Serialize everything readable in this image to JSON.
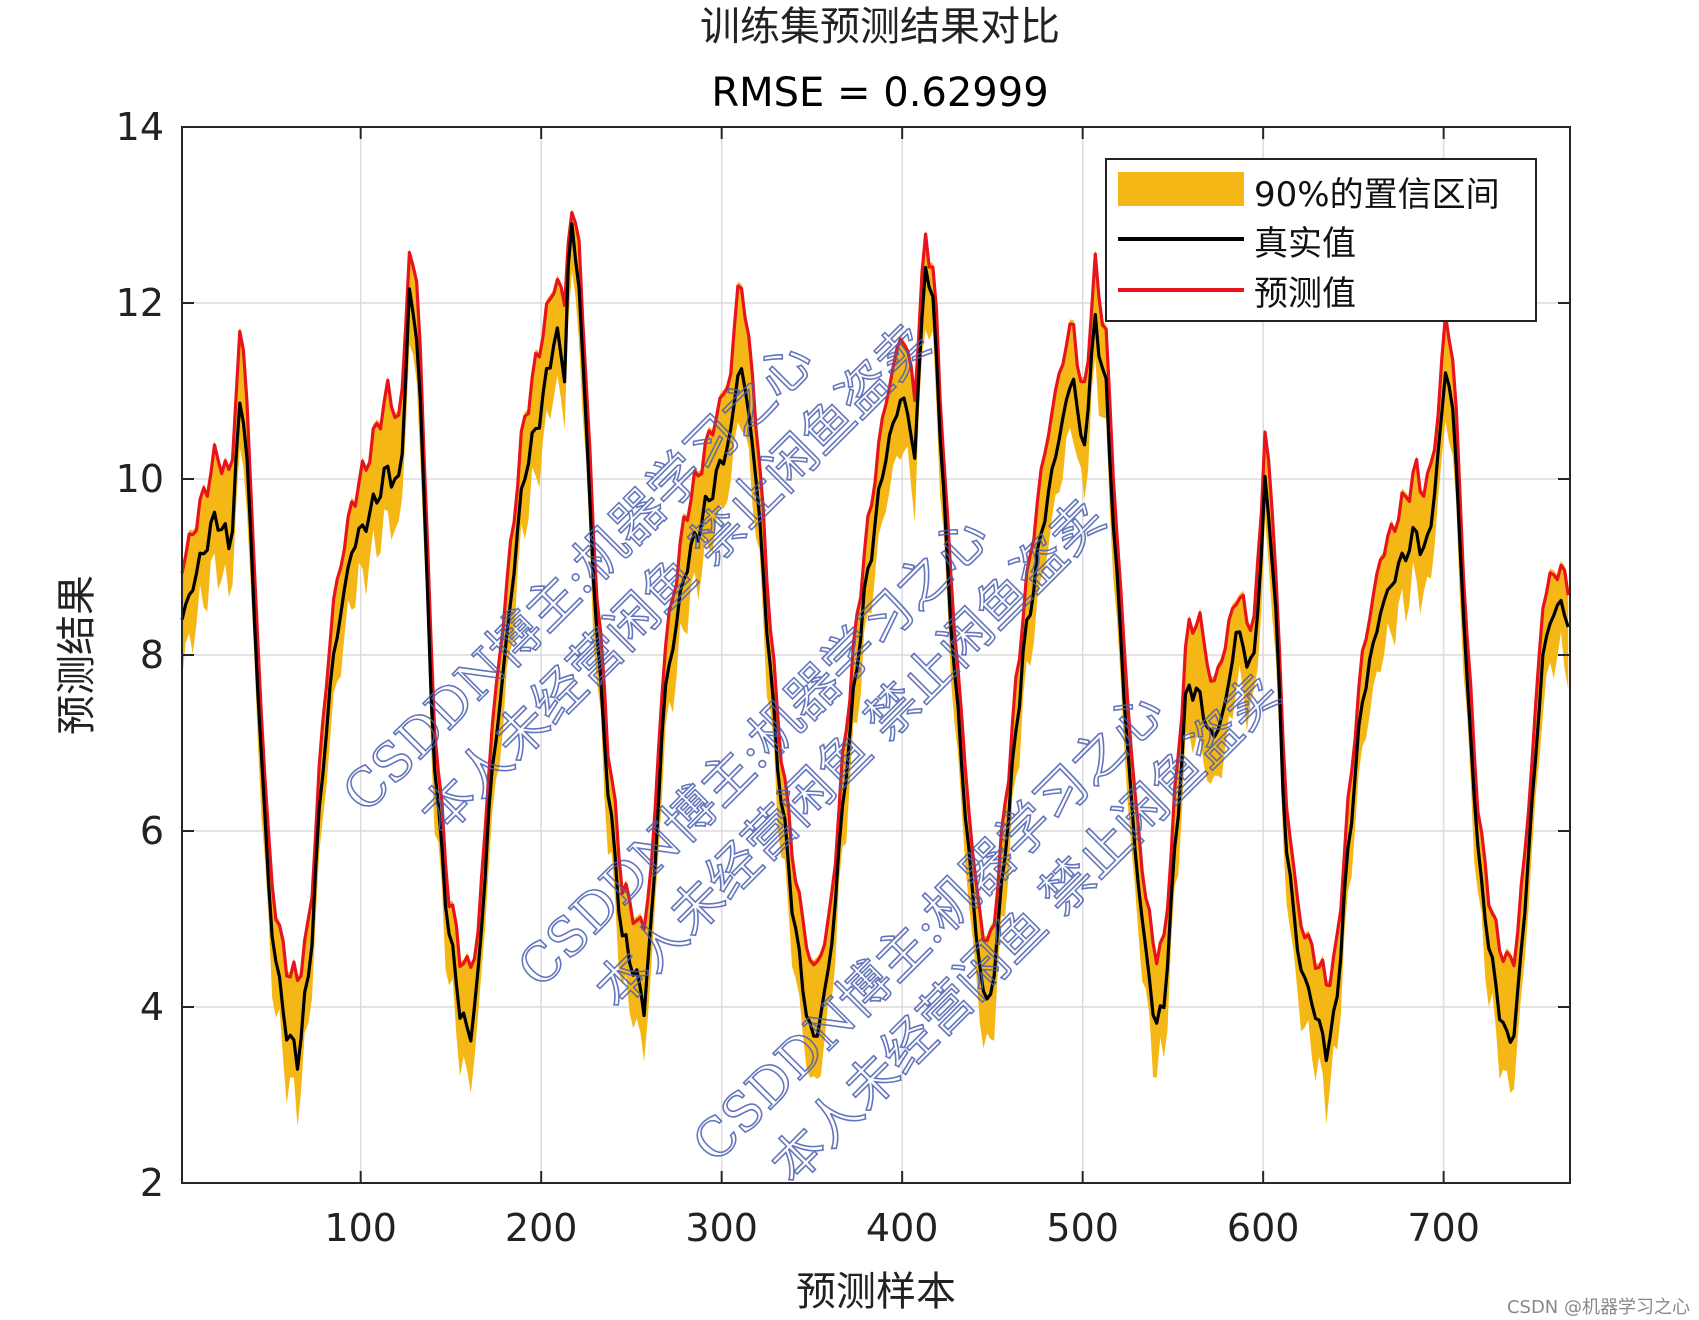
{
  "chart_data": {
    "type": "line",
    "title": "训练集预测结果对比",
    "subtitle": "RMSE = 0.62999",
    "xlabel": "预测样本",
    "ylabel": "预测结果",
    "xlim": [
      1,
      770
    ],
    "ylim": [
      2,
      14
    ],
    "xticks": [
      100,
      200,
      300,
      400,
      500,
      600,
      700
    ],
    "yticks": [
      2,
      4,
      6,
      8,
      10,
      12,
      14
    ],
    "grid": true,
    "legend_position": "top-right",
    "legend": [
      "90%的置信区间",
      "真实值",
      "预测值"
    ],
    "series": [
      {
        "name": "真实值",
        "color": "#000000",
        "points": [
          [
            1,
            8.4
          ],
          [
            10,
            9.0
          ],
          [
            20,
            9.6
          ],
          [
            28,
            9.2
          ],
          [
            33,
            10.8
          ],
          [
            36,
            10.7
          ],
          [
            42,
            8.0
          ],
          [
            50,
            5.0
          ],
          [
            58,
            3.8
          ],
          [
            65,
            3.4
          ],
          [
            72,
            4.5
          ],
          [
            78,
            6.5
          ],
          [
            85,
            8.0
          ],
          [
            95,
            9.2
          ],
          [
            105,
            9.6
          ],
          [
            115,
            10.1
          ],
          [
            122,
            9.9
          ],
          [
            127,
            12.1
          ],
          [
            132,
            11.5
          ],
          [
            140,
            7.0
          ],
          [
            148,
            5.0
          ],
          [
            155,
            4.0
          ],
          [
            160,
            3.6
          ],
          [
            165,
            4.3
          ],
          [
            172,
            6.5
          ],
          [
            180,
            8.0
          ],
          [
            190,
            10.0
          ],
          [
            200,
            10.8
          ],
          [
            208,
            11.7
          ],
          [
            213,
            11.2
          ],
          [
            216,
            13.0
          ],
          [
            221,
            12.2
          ],
          [
            230,
            8.5
          ],
          [
            237,
            6.5
          ],
          [
            245,
            4.8
          ],
          [
            252,
            4.4
          ],
          [
            257,
            4.0
          ],
          [
            262,
            5.2
          ],
          [
            268,
            7.5
          ],
          [
            280,
            9.0
          ],
          [
            295,
            9.9
          ],
          [
            305,
            10.5
          ],
          [
            310,
            11.4
          ],
          [
            318,
            10.3
          ],
          [
            330,
            7.0
          ],
          [
            340,
            5.0
          ],
          [
            348,
            3.8
          ],
          [
            352,
            3.6
          ],
          [
            360,
            4.5
          ],
          [
            368,
            6.5
          ],
          [
            378,
            8.5
          ],
          [
            390,
            10.2
          ],
          [
            400,
            11.0
          ],
          [
            407,
            10.3
          ],
          [
            413,
            12.5
          ],
          [
            418,
            11.8
          ],
          [
            425,
            9.0
          ],
          [
            432,
            7.0
          ],
          [
            440,
            5.0
          ],
          [
            446,
            4.0
          ],
          [
            450,
            4.2
          ],
          [
            458,
            6.0
          ],
          [
            467,
            8.0
          ],
          [
            478,
            9.5
          ],
          [
            488,
            10.6
          ],
          [
            495,
            11.2
          ],
          [
            500,
            10.2
          ],
          [
            507,
            11.8
          ],
          [
            513,
            11.0
          ],
          [
            520,
            8.5
          ],
          [
            528,
            6.0
          ],
          [
            534,
            4.8
          ],
          [
            540,
            3.8
          ],
          [
            545,
            4.0
          ],
          [
            552,
            6.0
          ],
          [
            558,
            7.7
          ],
          [
            565,
            7.5
          ],
          [
            572,
            7.0
          ],
          [
            580,
            7.5
          ],
          [
            585,
            8.3
          ],
          [
            590,
            8.0
          ],
          [
            595,
            7.9
          ],
          [
            601,
            9.9
          ],
          [
            606,
            9.0
          ],
          [
            612,
            6.0
          ],
          [
            620,
            4.5
          ],
          [
            628,
            4.0
          ],
          [
            635,
            3.5
          ],
          [
            640,
            3.9
          ],
          [
            648,
            6.0
          ],
          [
            655,
            7.5
          ],
          [
            665,
            8.5
          ],
          [
            675,
            9.0
          ],
          [
            685,
            9.4
          ],
          [
            690,
            9.1
          ],
          [
            697,
            10.2
          ],
          [
            701,
            11.3
          ],
          [
            706,
            10.6
          ],
          [
            712,
            8.0
          ],
          [
            720,
            5.5
          ],
          [
            728,
            4.3
          ],
          [
            735,
            3.6
          ],
          [
            740,
            3.8
          ],
          [
            748,
            6.0
          ],
          [
            755,
            8.0
          ],
          [
            762,
            8.6
          ],
          [
            770,
            8.4
          ]
        ]
      },
      {
        "name": "预测值",
        "color": "#e8141b",
        "points": [
          [
            1,
            9.0
          ],
          [
            10,
            9.6
          ],
          [
            20,
            10.3
          ],
          [
            28,
            10.0
          ],
          [
            33,
            11.6
          ],
          [
            36,
            11.4
          ],
          [
            42,
            8.5
          ],
          [
            50,
            5.5
          ],
          [
            58,
            4.5
          ],
          [
            65,
            4.3
          ],
          [
            72,
            5.0
          ],
          [
            78,
            7.0
          ],
          [
            85,
            8.6
          ],
          [
            95,
            9.7
          ],
          [
            105,
            10.3
          ],
          [
            115,
            11.0
          ],
          [
            122,
            10.6
          ],
          [
            127,
            12.6
          ],
          [
            132,
            12.1
          ],
          [
            140,
            7.5
          ],
          [
            148,
            5.4
          ],
          [
            155,
            4.6
          ],
          [
            160,
            4.4
          ],
          [
            165,
            4.8
          ],
          [
            172,
            7.0
          ],
          [
            180,
            8.6
          ],
          [
            190,
            10.6
          ],
          [
            200,
            11.6
          ],
          [
            208,
            12.3
          ],
          [
            213,
            12.0
          ],
          [
            216,
            13.1
          ],
          [
            221,
            12.7
          ],
          [
            230,
            9.0
          ],
          [
            237,
            7.0
          ],
          [
            245,
            5.4
          ],
          [
            252,
            5.0
          ],
          [
            257,
            4.9
          ],
          [
            262,
            5.8
          ],
          [
            268,
            8.0
          ],
          [
            280,
            9.6
          ],
          [
            295,
            10.6
          ],
          [
            305,
            11.2
          ],
          [
            310,
            12.4
          ],
          [
            318,
            11.0
          ],
          [
            330,
            7.5
          ],
          [
            340,
            5.6
          ],
          [
            348,
            4.6
          ],
          [
            352,
            4.4
          ],
          [
            360,
            5.0
          ],
          [
            368,
            7.0
          ],
          [
            378,
            9.0
          ],
          [
            390,
            10.8
          ],
          [
            400,
            11.7
          ],
          [
            407,
            11.0
          ],
          [
            413,
            12.8
          ],
          [
            418,
            12.2
          ],
          [
            425,
            9.5
          ],
          [
            432,
            7.5
          ],
          [
            440,
            5.5
          ],
          [
            446,
            4.7
          ],
          [
            450,
            4.8
          ],
          [
            458,
            6.5
          ],
          [
            467,
            8.5
          ],
          [
            478,
            10.2
          ],
          [
            488,
            11.3
          ],
          [
            495,
            11.8
          ],
          [
            500,
            10.8
          ],
          [
            507,
            12.4
          ],
          [
            513,
            11.6
          ],
          [
            520,
            9.0
          ],
          [
            528,
            6.6
          ],
          [
            534,
            5.4
          ],
          [
            540,
            4.6
          ],
          [
            545,
            4.7
          ],
          [
            552,
            6.6
          ],
          [
            558,
            8.3
          ],
          [
            565,
            8.4
          ],
          [
            572,
            7.6
          ],
          [
            580,
            8.2
          ],
          [
            585,
            8.7
          ],
          [
            590,
            8.5
          ],
          [
            595,
            8.3
          ],
          [
            601,
            10.5
          ],
          [
            606,
            9.5
          ],
          [
            612,
            6.5
          ],
          [
            620,
            5.0
          ],
          [
            628,
            4.6
          ],
          [
            635,
            4.3
          ],
          [
            640,
            4.5
          ],
          [
            648,
            6.5
          ],
          [
            655,
            8.0
          ],
          [
            665,
            9.1
          ],
          [
            675,
            9.6
          ],
          [
            685,
            10.1
          ],
          [
            690,
            9.8
          ],
          [
            697,
            10.7
          ],
          [
            701,
            11.9
          ],
          [
            706,
            11.2
          ],
          [
            712,
            8.5
          ],
          [
            720,
            6.0
          ],
          [
            728,
            4.9
          ],
          [
            735,
            4.5
          ],
          [
            740,
            4.6
          ],
          [
            748,
            6.5
          ],
          [
            755,
            8.6
          ],
          [
            762,
            9.0
          ],
          [
            770,
            8.8
          ]
        ]
      }
    ],
    "confidence_band": {
      "name": "90%的置信区间",
      "color": "#f5b716",
      "lower_offset_below_true": 0.55
    }
  },
  "watermark": {
    "line1": "CSDDN博主:机器学习之心",
    "line2": "本人未经营闲鱼 禁止闲鱼盗卖",
    "color": "#4a5fb0"
  },
  "footer": "CSDN @机器学习之心"
}
